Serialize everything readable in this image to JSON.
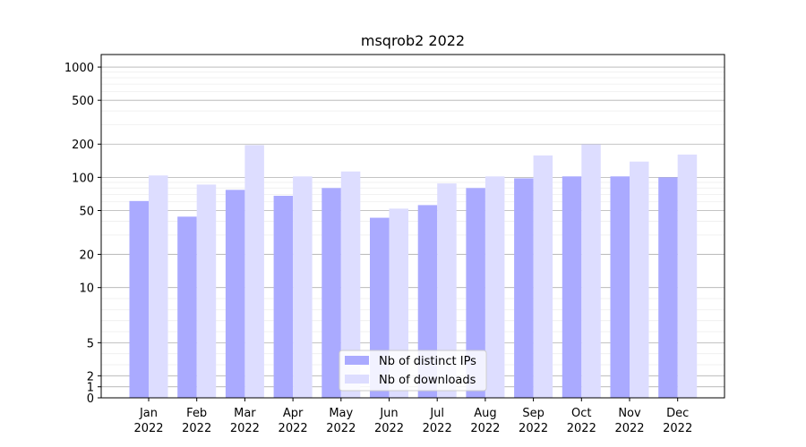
{
  "chart_data": {
    "type": "bar",
    "title": "msqrob2 2022",
    "xlabel": "",
    "ylabel": "",
    "yscale": "symlog",
    "ylim": [
      0,
      1300
    ],
    "yticks": [
      0,
      1,
      2,
      5,
      10,
      20,
      50,
      100,
      200,
      500,
      1000
    ],
    "grid": true,
    "legend_position": "bottom-center",
    "categories": [
      [
        "Jan",
        "2022"
      ],
      [
        "Feb",
        "2022"
      ],
      [
        "Mar",
        "2022"
      ],
      [
        "Apr",
        "2022"
      ],
      [
        "May",
        "2022"
      ],
      [
        "Jun",
        "2022"
      ],
      [
        "Jul",
        "2022"
      ],
      [
        "Aug",
        "2022"
      ],
      [
        "Sep",
        "2022"
      ],
      [
        "Oct",
        "2022"
      ],
      [
        "Nov",
        "2022"
      ],
      [
        "Dec",
        "2022"
      ]
    ],
    "series": [
      {
        "name": "Nb of distinct IPs",
        "color": "#aaaaff",
        "values": [
          61,
          44,
          77,
          68,
          80,
          43,
          56,
          80,
          98,
          102,
          102,
          100
        ]
      },
      {
        "name": "Nb of downloads",
        "color": "#ddddff",
        "values": [
          104,
          86,
          196,
          102,
          113,
          52,
          88,
          102,
          158,
          199,
          139,
          161
        ]
      }
    ]
  }
}
